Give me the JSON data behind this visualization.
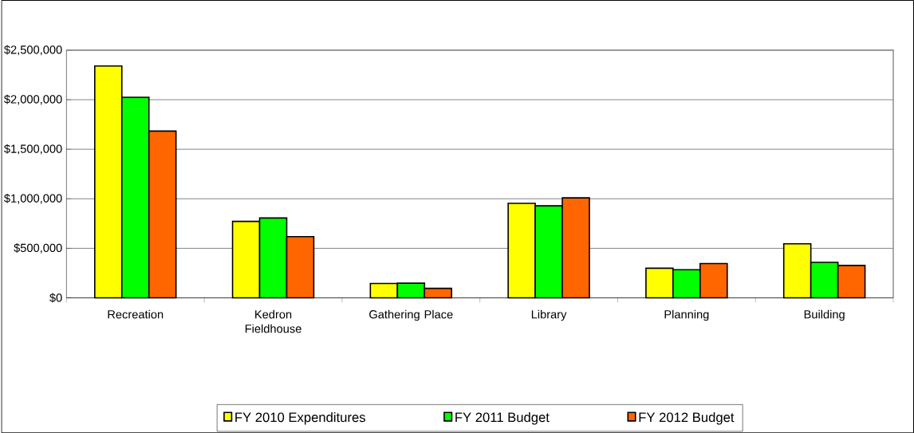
{
  "chart_data": {
    "type": "bar",
    "categories": [
      "Recreation",
      "Kedron Fieldhouse",
      "Gathering Place",
      "Library",
      "Planning",
      "Building"
    ],
    "series": [
      {
        "name": "FY 2010 Expenditures",
        "color": "#ffff00",
        "values": [
          2340000,
          772000,
          145000,
          954000,
          299000,
          546000
        ]
      },
      {
        "name": "FY 2011 Budget",
        "color": "#00ff00",
        "values": [
          2024000,
          806000,
          148000,
          929000,
          284000,
          358000
        ]
      },
      {
        "name": "FY 2012 Budget",
        "color": "#ff6600",
        "values": [
          1683000,
          618000,
          96000,
          1009000,
          346000,
          327000
        ]
      }
    ],
    "ylim": [
      0,
      2500000
    ],
    "yticks": [
      {
        "value": 0,
        "label": "$0"
      },
      {
        "value": 500000,
        "label": "$500,000"
      },
      {
        "value": 1000000,
        "label": "$1,000,000"
      },
      {
        "value": 1500000,
        "label": "$1,500,000"
      },
      {
        "value": 2000000,
        "label": "$2,000,000"
      },
      {
        "value": 2500000,
        "label": "$2,500,000"
      }
    ],
    "grid": "y",
    "legend": "bottom"
  }
}
